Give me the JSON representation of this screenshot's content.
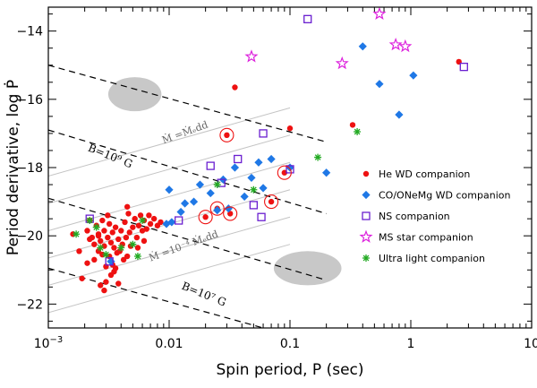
{
  "chart_data": {
    "type": "scatter",
    "xscale": "log",
    "xlabel": "Spin period,  P (sec)",
    "ylabel": "Period derivative,  log Ṗ",
    "xlim": [
      0.001,
      10
    ],
    "ylim": [
      -22.7,
      -13.3
    ],
    "x_ticks": [
      {
        "value": 0.001,
        "base": "10",
        "exp": "−3"
      },
      {
        "value": 0.01,
        "label": "0.01"
      },
      {
        "value": 0.1,
        "label": "0.1"
      },
      {
        "value": 1,
        "label": "1"
      },
      {
        "value": 10,
        "label": "10"
      }
    ],
    "y_ticks": [
      {
        "value": -14,
        "label": "−14"
      },
      {
        "value": -16,
        "label": "−16"
      },
      {
        "value": -18,
        "label": "−18"
      },
      {
        "value": -20,
        "label": "−20"
      },
      {
        "value": -22,
        "label": "−22"
      }
    ],
    "colors": {
      "he_wd": "#ee1111",
      "co_wd": "#1f78e6",
      "ns": "#6a1fd0",
      "ms_star": "#dd22dd",
      "ultra_light": "#22aa22",
      "shade": "#c8c8c8",
      "gray_line": "#c4c4c4"
    },
    "dashed_lines": [
      {
        "points": [
          [
            0.001,
            -15.0
          ],
          [
            0.2,
            -17.25
          ]
        ]
      },
      {
        "points": [
          [
            0.001,
            -16.9
          ],
          [
            0.2,
            -19.35
          ]
        ]
      },
      {
        "points": [
          [
            0.001,
            -18.9
          ],
          [
            0.2,
            -21.3
          ]
        ]
      },
      {
        "points": [
          [
            0.001,
            -20.95
          ],
          [
            0.06,
            -22.7
          ]
        ]
      }
    ],
    "gray_lines": [
      {
        "points": [
          [
            0.001,
            -18.25
          ],
          [
            0.1,
            -16.25
          ]
        ]
      },
      {
        "points": [
          [
            0.001,
            -19.05
          ],
          [
            0.1,
            -17.05
          ]
        ]
      },
      {
        "points": [
          [
            0.001,
            -19.85
          ],
          [
            0.1,
            -17.85
          ]
        ]
      },
      {
        "points": [
          [
            0.001,
            -20.65
          ],
          [
            0.1,
            -18.65
          ]
        ]
      },
      {
        "points": [
          [
            0.001,
            -21.45
          ],
          [
            0.1,
            -19.45
          ]
        ]
      },
      {
        "points": [
          [
            0.001,
            -22.25
          ],
          [
            0.1,
            -20.25
          ]
        ]
      }
    ],
    "shaded_regions": [
      {
        "cx": 0.0052,
        "cy": -15.85,
        "rx": 0.22,
        "ry": 0.5
      },
      {
        "cx": 0.14,
        "cy": -20.95,
        "rx": 0.28,
        "ry": 0.5
      }
    ],
    "annotations": [
      {
        "text": "B=10⁹ G",
        "x": 0.0021,
        "y": -17.5,
        "angle": 22,
        "style": "dark"
      },
      {
        "text": "B=10⁷ G",
        "x": 0.0125,
        "y": -21.55,
        "angle": 22,
        "style": "dark"
      },
      {
        "text": "Ṁ =Ṁₑdd",
        "x": 0.009,
        "y": -17.3,
        "angle": -20,
        "style": "gray"
      },
      {
        "text": "Ṁ =10⁻⁴ Ṁₑdd",
        "x": 0.007,
        "y": -20.75,
        "angle": -20,
        "style": "gray"
      }
    ],
    "circled_points": [
      [
        0.03,
        -17.05
      ],
      [
        0.09,
        -18.15
      ],
      [
        0.07,
        -19.0
      ],
      [
        0.02,
        -19.45
      ],
      [
        0.025,
        -19.2
      ],
      [
        0.032,
        -19.35
      ]
    ],
    "series": [
      {
        "name": "He WD companion",
        "marker": "circle",
        "color": "#ee1111",
        "points": [
          [
            0.0016,
            -19.95
          ],
          [
            0.0018,
            -20.45
          ],
          [
            0.0019,
            -21.25
          ],
          [
            0.0021,
            -19.85
          ],
          [
            0.0021,
            -20.8
          ],
          [
            0.0022,
            -19.55
          ],
          [
            0.0023,
            -20.05
          ],
          [
            0.0024,
            -20.25
          ],
          [
            0.0024,
            -20.7
          ],
          [
            0.0025,
            -19.7
          ],
          [
            0.0026,
            -19.95
          ],
          [
            0.0026,
            -20.45
          ],
          [
            0.0027,
            -20.15
          ],
          [
            0.0027,
            -21.45
          ],
          [
            0.0028,
            -19.55
          ],
          [
            0.0028,
            -20.55
          ],
          [
            0.0029,
            -19.85
          ],
          [
            0.0029,
            -20.3
          ],
          [
            0.003,
            -20.9
          ],
          [
            0.003,
            -21.35
          ],
          [
            0.0031,
            -20.05
          ],
          [
            0.0032,
            -19.65
          ],
          [
            0.0032,
            -20.6
          ],
          [
            0.0033,
            -20.2
          ],
          [
            0.0033,
            -21.15
          ],
          [
            0.0034,
            -19.9
          ],
          [
            0.0035,
            -20.35
          ],
          [
            0.0035,
            -21.05
          ],
          [
            0.0036,
            -19.75
          ],
          [
            0.0037,
            -20.5
          ],
          [
            0.0038,
            -20.1
          ],
          [
            0.0039,
            -20.45
          ],
          [
            0.004,
            -19.85
          ],
          [
            0.0041,
            -20.25
          ],
          [
            0.0043,
            -19.6
          ],
          [
            0.0044,
            -20.05
          ],
          [
            0.0045,
            -20.6
          ],
          [
            0.0046,
            -19.35
          ],
          [
            0.0047,
            -19.9
          ],
          [
            0.0048,
            -20.3
          ],
          [
            0.005,
            -19.75
          ],
          [
            0.0052,
            -19.5
          ],
          [
            0.0054,
            -20.05
          ],
          [
            0.0056,
            -19.7
          ],
          [
            0.0058,
            -19.4
          ],
          [
            0.006,
            -19.85
          ],
          [
            0.0062,
            -19.55
          ],
          [
            0.0065,
            -19.8
          ],
          [
            0.0068,
            -19.4
          ],
          [
            0.007,
            -19.65
          ],
          [
            0.0075,
            -19.5
          ],
          [
            0.008,
            -19.7
          ],
          [
            0.0085,
            -19.6
          ],
          [
            0.0038,
            -21.4
          ],
          [
            0.0022,
            -20.1
          ],
          [
            0.0034,
            -20.85
          ],
          [
            0.0042,
            -20.7
          ],
          [
            0.0026,
            -20.0
          ],
          [
            0.0031,
            -19.4
          ],
          [
            0.0036,
            -20.95
          ],
          [
            0.0055,
            -20.35
          ],
          [
            0.0062,
            -20.15
          ],
          [
            0.0029,
            -21.6
          ],
          [
            0.0045,
            -19.15
          ],
          [
            0.02,
            -19.45
          ],
          [
            0.025,
            -19.2
          ],
          [
            0.03,
            -17.05
          ],
          [
            0.032,
            -19.35
          ],
          [
            0.07,
            -19.0
          ],
          [
            0.09,
            -18.15
          ],
          [
            0.035,
            -15.65
          ],
          [
            0.1,
            -16.85
          ],
          [
            0.33,
            -16.75
          ],
          [
            2.5,
            -14.9
          ]
        ]
      },
      {
        "name": "CO/ONeMg WD companion",
        "marker": "diamond",
        "color": "#1f78e6",
        "points": [
          [
            0.0095,
            -19.65
          ],
          [
            0.0105,
            -19.6
          ],
          [
            0.01,
            -18.65
          ],
          [
            0.0125,
            -19.3
          ],
          [
            0.0135,
            -19.05
          ],
          [
            0.016,
            -19.0
          ],
          [
            0.018,
            -18.5
          ],
          [
            0.022,
            -18.75
          ],
          [
            0.025,
            -19.25
          ],
          [
            0.028,
            -18.35
          ],
          [
            0.031,
            -19.2
          ],
          [
            0.035,
            -18.0
          ],
          [
            0.042,
            -18.85
          ],
          [
            0.048,
            -18.3
          ],
          [
            0.06,
            -18.6
          ],
          [
            0.055,
            -17.85
          ],
          [
            0.07,
            -17.75
          ],
          [
            0.1,
            -18.0
          ],
          [
            0.2,
            -18.15
          ],
          [
            0.4,
            -14.45
          ],
          [
            0.55,
            -15.55
          ],
          [
            0.8,
            -16.45
          ],
          [
            1.05,
            -15.3
          ],
          [
            0.0033,
            -20.75
          ]
        ]
      },
      {
        "name": "NS companion",
        "marker": "square",
        "color": "#6a1fd0",
        "points": [
          [
            0.0022,
            -19.5
          ],
          [
            0.0032,
            -20.75
          ],
          [
            0.012,
            -19.55
          ],
          [
            0.022,
            -17.95
          ],
          [
            0.027,
            -18.45
          ],
          [
            0.037,
            -17.75
          ],
          [
            0.05,
            -19.1
          ],
          [
            0.058,
            -19.45
          ],
          [
            0.06,
            -17.0
          ],
          [
            0.1,
            -18.05
          ],
          [
            0.14,
            -13.65
          ],
          [
            2.75,
            -15.05
          ]
        ]
      },
      {
        "name": "MS star companion",
        "marker": "star",
        "color": "#dd22dd",
        "points": [
          [
            0.048,
            -14.75
          ],
          [
            0.27,
            -14.95
          ],
          [
            0.55,
            -13.5
          ],
          [
            0.75,
            -14.4
          ],
          [
            0.9,
            -14.45
          ]
        ]
      },
      {
        "name": "Ultra light companion",
        "marker": "asterisk",
        "color": "#22aa22",
        "points": [
          [
            0.0017,
            -19.95
          ],
          [
            0.0022,
            -19.55
          ],
          [
            0.0025,
            -19.75
          ],
          [
            0.0027,
            -20.35
          ],
          [
            0.003,
            -20.55
          ],
          [
            0.004,
            -20.35
          ],
          [
            0.005,
            -20.25
          ],
          [
            0.006,
            -19.55
          ],
          [
            0.0055,
            -20.6
          ],
          [
            0.025,
            -18.5
          ],
          [
            0.05,
            -18.65
          ],
          [
            0.17,
            -17.7
          ],
          [
            0.36,
            -16.95
          ]
        ]
      }
    ]
  }
}
